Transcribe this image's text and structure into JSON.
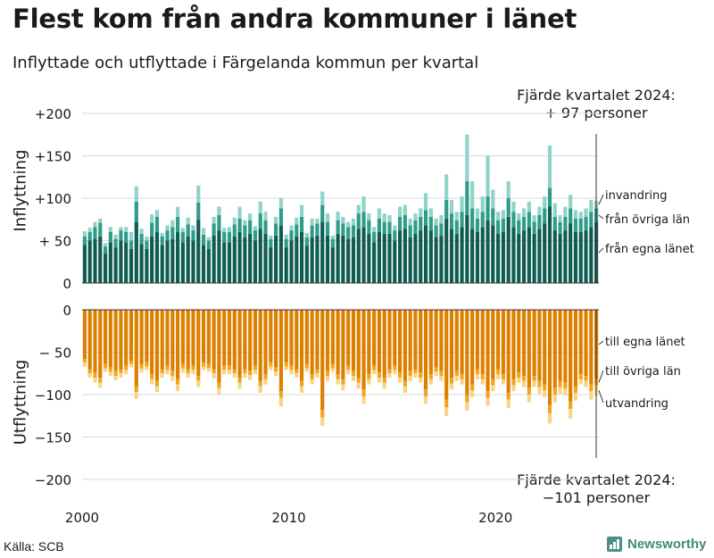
{
  "title": "Flest kom från andra kommuner i länet",
  "subtitle": "Inflyttade och utflyttade i Färgelanda kommun per kvartal",
  "source": "Källa: SCB",
  "brand": "Newsworthy",
  "annotations": {
    "top_line1": "Fjärde kvartalet 2024:",
    "top_line2": "+ 97 personer",
    "bottom_line1": "Fjärde kvartalet 2024:",
    "bottom_line2": "−101 personer"
  },
  "colors": {
    "in_egna": "#0f5c52",
    "in_ovriga": "#2f9c8a",
    "in_invandring": "#8fd3c9",
    "ut_egna": "#dd8000",
    "ut_ovriga": "#f2a51c",
    "ut_utvandring": "#f8d48a"
  },
  "chart_data": {
    "type": "bar",
    "stacked": true,
    "x_start": "2000 Q1",
    "x_end": "2024 Q4",
    "x_ticks": [
      "2000",
      "2010",
      "2020"
    ],
    "grid": true,
    "panels": [
      {
        "ylabel": "Inflyttning",
        "ylim": [
          0,
          200
        ],
        "yticks": [
          "0",
          "+ 50",
          "+100",
          "+150",
          "+200"
        ],
        "series": [
          {
            "name": "från egna länet",
            "values": [
              45,
              50,
              52,
              55,
              35,
              48,
              42,
              50,
              48,
              40,
              72,
              46,
              40,
              55,
              60,
              45,
              50,
              52,
              60,
              48,
              55,
              50,
              75,
              45,
              40,
              56,
              62,
              48,
              48,
              55,
              60,
              54,
              58,
              50,
              64,
              58,
              42,
              56,
              68,
              42,
              50,
              55,
              60,
              44,
              54,
              56,
              72,
              56,
              42,
              58,
              56,
              52,
              54,
              64,
              66,
              58,
              48,
              60,
              58,
              58,
              50,
              62,
              64,
              54,
              58,
              62,
              68,
              62,
              54,
              56,
              76,
              64,
              58,
              66,
              80,
              64,
              60,
              66,
              74,
              68,
              58,
              60,
              78,
              66,
              58,
              62,
              66,
              58,
              64,
              70,
              90,
              62,
              58,
              62,
              70,
              60,
              60,
              62,
              66,
              72
            ]
          },
          {
            "name": "från övriga län",
            "values": [
              10,
              10,
              14,
              16,
              8,
              12,
              10,
              12,
              12,
              10,
              24,
              12,
              10,
              16,
              18,
              10,
              12,
              14,
              18,
              12,
              14,
              12,
              20,
              12,
              10,
              14,
              18,
              12,
              12,
              14,
              16,
              14,
              16,
              12,
              18,
              16,
              10,
              14,
              20,
              10,
              12,
              14,
              18,
              10,
              14,
              14,
              20,
              16,
              10,
              16,
              14,
              14,
              14,
              18,
              18,
              16,
              12,
              16,
              14,
              14,
              12,
              16,
              16,
              14,
              16,
              16,
              18,
              16,
              14,
              14,
              22,
              18,
              16,
              18,
              40,
              24,
              16,
              18,
              28,
              20,
              16,
              16,
              22,
              18,
              16,
              16,
              18,
              14,
              16,
              18,
              22,
              16,
              14,
              16,
              18,
              16,
              16,
              16,
              18,
              16
            ]
          },
          {
            "name": "invandring",
            "values": [
              6,
              5,
              6,
              5,
              4,
              6,
              5,
              4,
              6,
              10,
              18,
              6,
              5,
              10,
              8,
              4,
              6,
              8,
              12,
              5,
              8,
              6,
              20,
              8,
              4,
              8,
              10,
              5,
              6,
              8,
              14,
              6,
              8,
              5,
              14,
              10,
              4,
              8,
              12,
              5,
              6,
              8,
              14,
              5,
              8,
              6,
              16,
              10,
              4,
              10,
              8,
              6,
              8,
              10,
              18,
              8,
              6,
              12,
              10,
              8,
              6,
              12,
              12,
              8,
              8,
              10,
              20,
              10,
              8,
              10,
              30,
              16,
              10,
              18,
              55,
              32,
              12,
              18,
              48,
              22,
              10,
              10,
              20,
              12,
              8,
              10,
              12,
              8,
              10,
              14,
              50,
              16,
              8,
              12,
              16,
              10,
              8,
              10,
              14,
              9
            ]
          }
        ]
      },
      {
        "ylabel": "Utflyttning",
        "ylim": [
          -200,
          0
        ],
        "yticks": [
          "0",
          "− 50",
          "−100",
          "−150",
          "−200"
        ],
        "series": [
          {
            "name": "till egna länet",
            "values": [
              -58,
              -70,
              -74,
              -80,
              -64,
              -68,
              -72,
              -70,
              -66,
              -60,
              -90,
              -64,
              -62,
              -76,
              -84,
              -70,
              -66,
              -72,
              -82,
              -64,
              -70,
              -66,
              -78,
              -62,
              -64,
              -70,
              -86,
              -66,
              -66,
              -70,
              -80,
              -70,
              -72,
              -66,
              -84,
              -76,
              -62,
              -68,
              -96,
              -62,
              -66,
              -70,
              -84,
              -64,
              -76,
              -70,
              -118,
              -72,
              -64,
              -76,
              -82,
              -66,
              -72,
              -80,
              -94,
              -76,
              -66,
              -74,
              -80,
              -70,
              -66,
              -74,
              -84,
              -72,
              -70,
              -74,
              -94,
              -76,
              -68,
              -72,
              -106,
              -80,
              -72,
              -76,
              -100,
              -88,
              -70,
              -76,
              -96,
              -82,
              -70,
              -76,
              -98,
              -82,
              -74,
              -78,
              -92,
              -78,
              -84,
              -88,
              -112,
              -92,
              -84,
              -86,
              -108,
              -90,
              -76,
              -78,
              -88,
              -82
            ]
          },
          {
            "name": "till övriga län",
            "values": [
              -4,
              -5,
              -6,
              -6,
              -5,
              -5,
              -6,
              -5,
              -5,
              -4,
              -7,
              -5,
              -5,
              -6,
              -6,
              -5,
              -5,
              -6,
              -6,
              -5,
              -5,
              -5,
              -6,
              -5,
              -5,
              -5,
              -6,
              -5,
              -5,
              -5,
              -6,
              -5,
              -5,
              -5,
              -6,
              -6,
              -5,
              -5,
              -8,
              -5,
              -5,
              -5,
              -6,
              -5,
              -6,
              -5,
              -9,
              -6,
              -5,
              -6,
              -6,
              -5,
              -6,
              -6,
              -8,
              -6,
              -5,
              -6,
              -6,
              -5,
              -5,
              -6,
              -6,
              -6,
              -5,
              -6,
              -8,
              -6,
              -5,
              -6,
              -9,
              -7,
              -6,
              -6,
              -9,
              -7,
              -6,
              -6,
              -8,
              -7,
              -6,
              -6,
              -8,
              -7,
              -6,
              -6,
              -8,
              -6,
              -7,
              -7,
              -10,
              -8,
              -7,
              -7,
              -9,
              -8,
              -6,
              -6,
              -8,
              -7
            ]
          },
          {
            "name": "utvandring",
            "values": [
              -5,
              -5,
              -6,
              -6,
              -4,
              -5,
              -5,
              -5,
              -5,
              -4,
              -8,
              -5,
              -4,
              -6,
              -7,
              -5,
              -5,
              -6,
              -8,
              -5,
              -5,
              -5,
              -7,
              -4,
              -4,
              -6,
              -8,
              -5,
              -5,
              -5,
              -7,
              -5,
              -6,
              -5,
              -8,
              -6,
              -4,
              -5,
              -10,
              -4,
              -5,
              -5,
              -8,
              -4,
              -6,
              -5,
              -10,
              -6,
              -4,
              -6,
              -7,
              -5,
              -6,
              -7,
              -9,
              -6,
              -5,
              -6,
              -7,
              -5,
              -5,
              -6,
              -8,
              -6,
              -5,
              -6,
              -9,
              -6,
              -5,
              -6,
              -10,
              -7,
              -6,
              -6,
              -10,
              -8,
              -6,
              -6,
              -9,
              -7,
              -6,
              -6,
              -10,
              -7,
              -6,
              -7,
              -9,
              -7,
              -8,
              -8,
              -12,
              -9,
              -8,
              -8,
              -11,
              -9,
              -6,
              -7,
              -10,
              -12
            ]
          }
        ]
      }
    ],
    "legend_in": [
      "invandring",
      "från övriga län",
      "från egna länet"
    ],
    "legend_out": [
      "till egna länet",
      "till övriga län",
      "utvandring"
    ]
  }
}
